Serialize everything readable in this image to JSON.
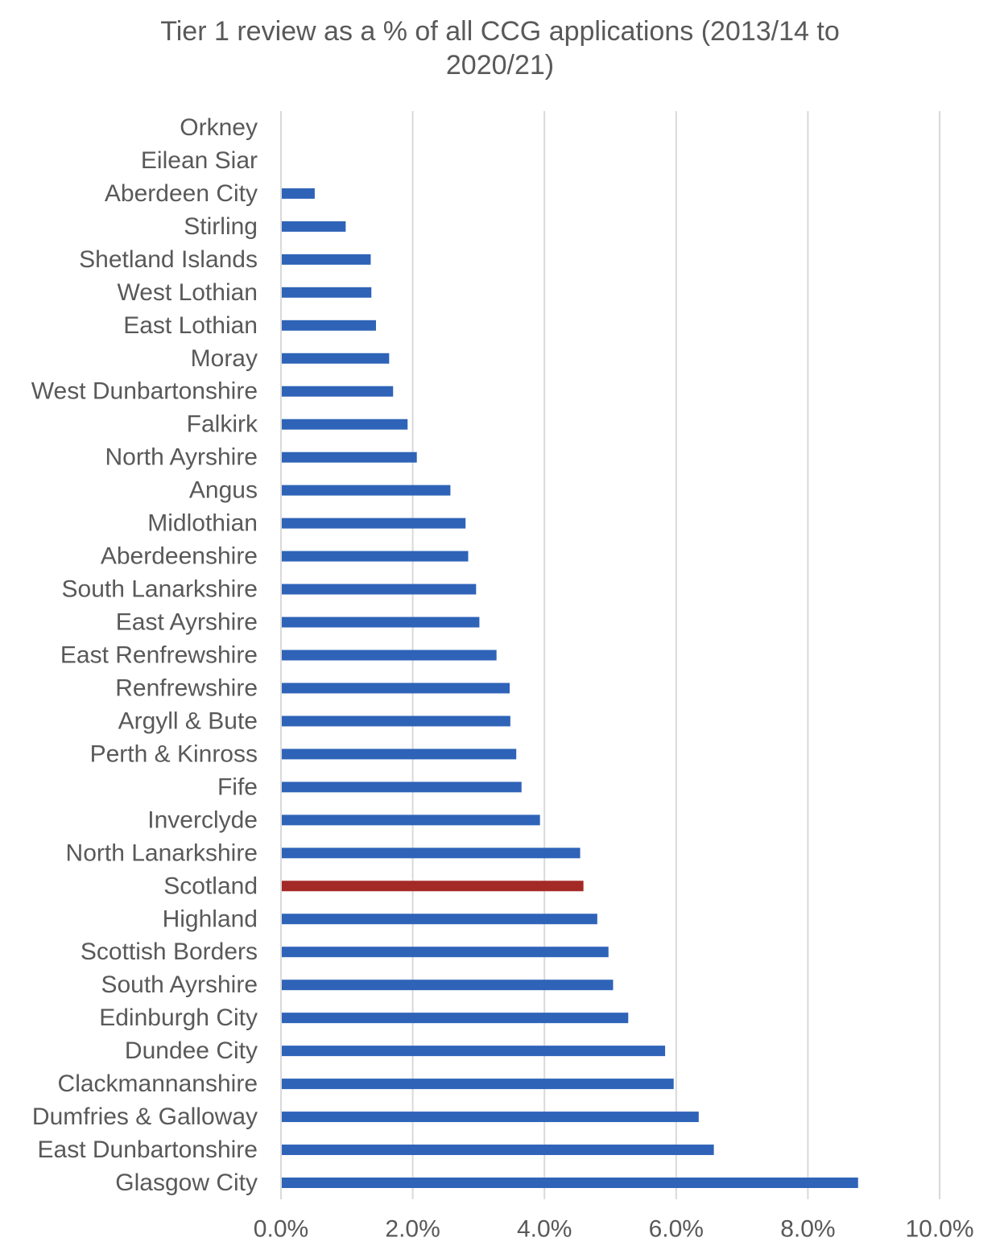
{
  "chart_data": {
    "type": "bar",
    "orientation": "horizontal",
    "title": "Tier 1 review as a % of all CCG applications (2013/14 to\n2020/21)",
    "xlabel": "",
    "ylabel": "",
    "xlim": [
      0,
      10
    ],
    "x_ticks": [
      "0.0%",
      "2.0%",
      "4.0%",
      "6.0%",
      "8.0%",
      "10.0%"
    ],
    "x_tick_values": [
      0,
      2,
      4,
      6,
      8,
      10
    ],
    "grid": "vertical",
    "legend": "none",
    "colors": {
      "default": "#2e63b8",
      "highlight": "#a32a26",
      "grid": "#d9d9d9",
      "text": "#595959"
    },
    "highlight_category": "Scotland",
    "categories": [
      "Orkney",
      "Eilean Siar",
      "Aberdeen City",
      "Stirling",
      "Shetland Islands",
      "West Lothian",
      "East Lothian",
      "Moray",
      "West Dunbartonshire",
      "Falkirk",
      "North Ayrshire",
      "Angus",
      "Midlothian",
      "Aberdeenshire",
      "South Lanarkshire",
      "East Ayrshire",
      "East Renfrewshire",
      "Renfrewshire",
      "Argyll & Bute",
      "Perth & Kinross",
      "Fife",
      "Inverclyde",
      "North Lanarkshire",
      "Scotland",
      "Highland",
      "Scottish Borders",
      "South Ayrshire",
      "Edinburgh City",
      "Dundee City",
      "Clackmannanshire",
      "Dumfries & Galloway",
      "East Dunbartonshire",
      "Glasgow City"
    ],
    "values": [
      0.0,
      0.0,
      0.5,
      0.97,
      1.35,
      1.36,
      1.43,
      1.63,
      1.69,
      1.91,
      2.05,
      2.56,
      2.79,
      2.83,
      2.95,
      3.0,
      3.26,
      3.46,
      3.47,
      3.56,
      3.64,
      3.92,
      4.53,
      4.58,
      4.79,
      4.96,
      5.03,
      5.26,
      5.82,
      5.95,
      6.33,
      6.56,
      8.75
    ]
  }
}
